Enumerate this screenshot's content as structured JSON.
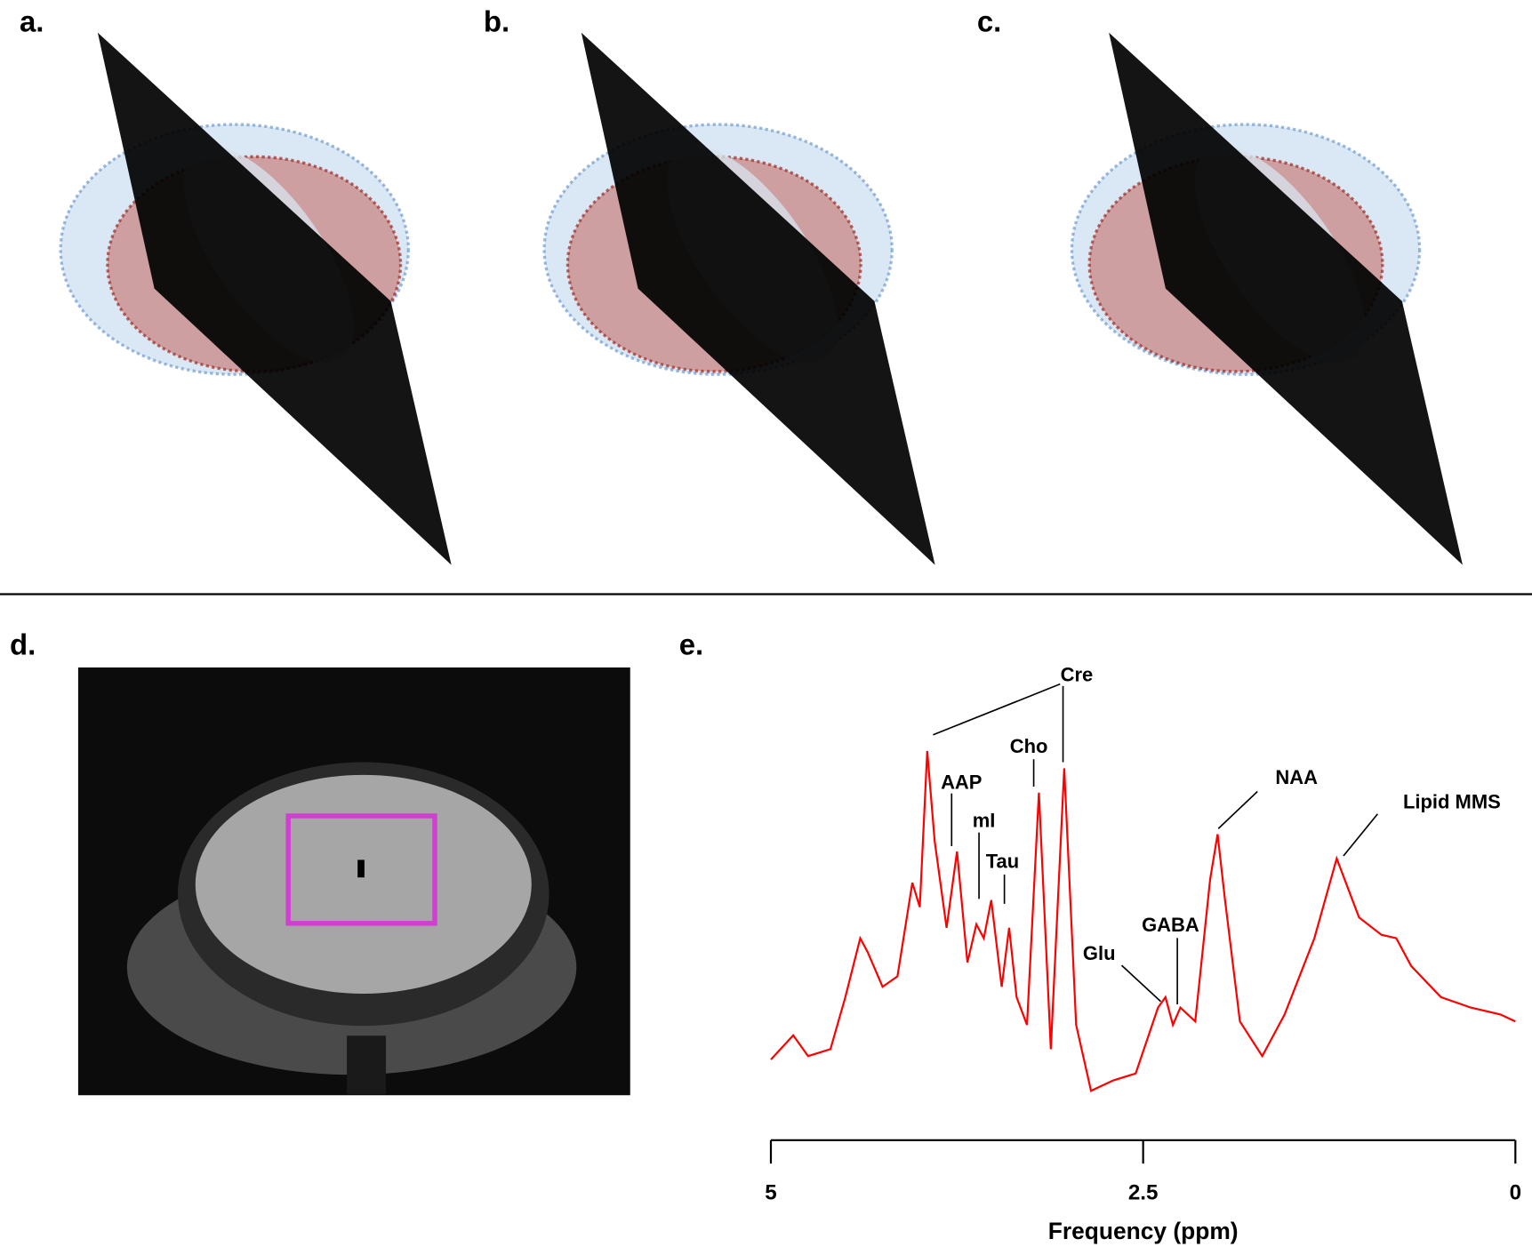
{
  "panel_labels": [
    "a.",
    "b.",
    "c.",
    "d.",
    "e."
  ],
  "chart_data": {
    "type": "line",
    "xlabel": "Frequency (ppm)",
    "xlim": [
      5,
      0
    ],
    "xticks": [
      5,
      2.5,
      0
    ],
    "ylim": [
      0,
      1
    ],
    "annotations": [
      "Cre",
      "Cho",
      "AAP",
      "mI",
      "Tau",
      "Glu",
      "GABA",
      "NAA",
      "Lipid MMS"
    ],
    "x": [
      5.0,
      4.85,
      4.75,
      4.6,
      4.5,
      4.4,
      4.35,
      4.25,
      4.15,
      4.05,
      4.0,
      3.95,
      3.9,
      3.82,
      3.75,
      3.68,
      3.62,
      3.57,
      3.52,
      3.45,
      3.4,
      3.35,
      3.28,
      3.2,
      3.12,
      3.03,
      2.95,
      2.85,
      2.7,
      2.55,
      2.4,
      2.35,
      2.3,
      2.25,
      2.15,
      2.05,
      2.0,
      1.95,
      1.85,
      1.7,
      1.55,
      1.35,
      1.2,
      1.05,
      0.9,
      0.8,
      0.7,
      0.5,
      0.3,
      0.1,
      0.0
    ],
    "series": [
      {
        "color": "#ff0000",
        "values": [
          0.1,
          0.17,
          0.11,
          0.13,
          0.28,
          0.45,
          0.41,
          0.31,
          0.34,
          0.61,
          0.54,
          0.99,
          0.73,
          0.48,
          0.7,
          0.38,
          0.49,
          0.45,
          0.56,
          0.31,
          0.48,
          0.28,
          0.2,
          0.87,
          0.13,
          0.94,
          0.2,
          0.01,
          0.04,
          0.06,
          0.25,
          0.28,
          0.2,
          0.25,
          0.21,
          0.62,
          0.75,
          0.56,
          0.21,
          0.11,
          0.23,
          0.45,
          0.68,
          0.51,
          0.46,
          0.45,
          0.37,
          0.28,
          0.25,
          0.23,
          0.21
        ]
      }
    ]
  }
}
